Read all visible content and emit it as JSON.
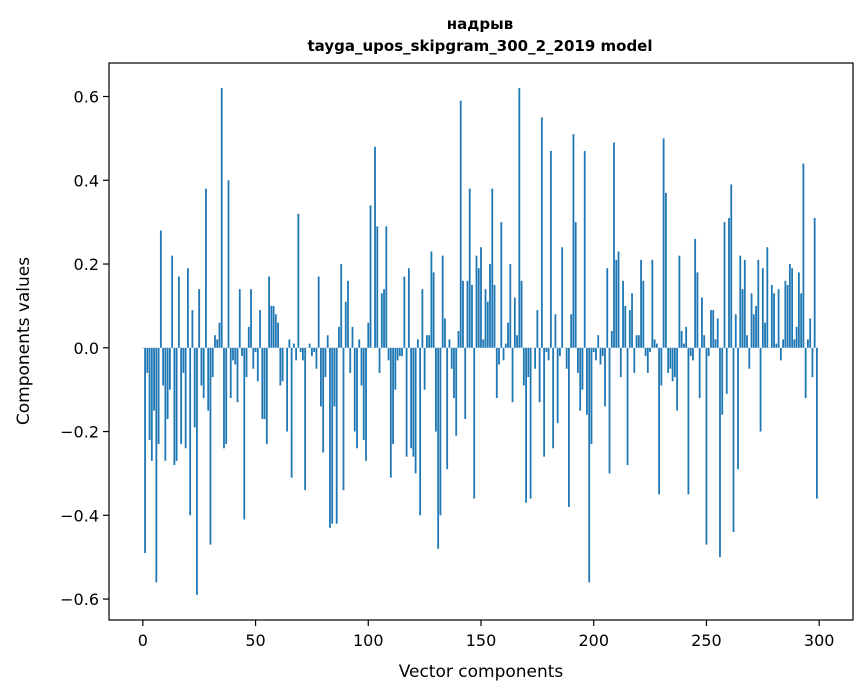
{
  "chart_data": {
    "type": "bar",
    "title": "надрыв",
    "subtitle": "tayga_upos_skipgram_300_2_2019 model",
    "xlabel": "Vector components",
    "ylabel": "Components values",
    "xlim": [
      -15,
      315
    ],
    "ylim": [
      -0.65,
      0.68
    ],
    "xticks": [
      0,
      50,
      100,
      150,
      200,
      250,
      300
    ],
    "yticks": [
      -0.6,
      -0.4,
      -0.2,
      0.0,
      0.2,
      0.4,
      0.6
    ],
    "ytick_labels": [
      "−0.6",
      "−0.4",
      "−0.2",
      "0.0",
      "0.2",
      "0.4",
      "0.6"
    ],
    "bar_color": "#1f77b4",
    "values": [
      0.0,
      -0.49,
      -0.06,
      -0.22,
      -0.27,
      -0.15,
      -0.56,
      -0.23,
      0.28,
      -0.09,
      -0.27,
      -0.17,
      -0.1,
      0.22,
      -0.28,
      -0.27,
      0.17,
      -0.23,
      -0.06,
      -0.24,
      0.19,
      -0.4,
      0.09,
      -0.19,
      -0.59,
      0.14,
      -0.09,
      -0.12,
      0.38,
      -0.15,
      -0.47,
      -0.07,
      0.03,
      0.02,
      0.06,
      0.62,
      -0.24,
      -0.23,
      0.4,
      -0.12,
      -0.03,
      -0.04,
      -0.13,
      0.14,
      -0.02,
      -0.41,
      -0.07,
      0.05,
      0.14,
      -0.05,
      -0.01,
      -0.08,
      0.09,
      -0.17,
      -0.17,
      -0.23,
      0.17,
      0.1,
      0.1,
      0.08,
      0.06,
      -0.09,
      -0.08,
      0.0,
      -0.2,
      0.02,
      -0.31,
      0.01,
      -0.03,
      0.32,
      -0.01,
      -0.03,
      -0.34,
      0.0,
      0.01,
      -0.02,
      -0.01,
      -0.05,
      0.17,
      -0.14,
      -0.25,
      -0.07,
      0.03,
      -0.43,
      -0.42,
      -0.14,
      -0.42,
      0.05,
      0.2,
      -0.34,
      0.11,
      0.16,
      -0.06,
      0.05,
      -0.2,
      -0.24,
      0.02,
      -0.09,
      -0.22,
      -0.27,
      0.06,
      0.34,
      0.0,
      0.48,
      0.29,
      -0.06,
      0.13,
      0.14,
      0.29,
      -0.03,
      -0.31,
      -0.23,
      -0.1,
      -0.03,
      -0.02,
      -0.02,
      0.17,
      -0.26,
      0.19,
      -0.24,
      -0.26,
      -0.3,
      0.02,
      -0.4,
      0.14,
      -0.1,
      0.03,
      0.03,
      0.23,
      0.18,
      -0.2,
      -0.48,
      -0.4,
      0.22,
      0.07,
      -0.29,
      0.02,
      -0.05,
      -0.12,
      -0.21,
      0.04,
      0.59,
      0.16,
      -0.17,
      0.16,
      0.38,
      0.15,
      -0.36,
      0.22,
      0.19,
      0.24,
      0.02,
      0.14,
      0.11,
      0.2,
      0.38,
      0.15,
      -0.12,
      -0.04,
      0.3,
      -0.03,
      0.01,
      0.06,
      0.2,
      -0.13,
      0.12,
      0.03,
      0.62,
      0.16,
      -0.09,
      -0.37,
      -0.07,
      -0.36,
      0.0,
      -0.05,
      0.09,
      -0.13,
      0.55,
      -0.26,
      -0.01,
      -0.03,
      0.47,
      -0.24,
      0.08,
      -0.18,
      -0.02,
      0.24,
      0.0,
      -0.05,
      -0.38,
      0.08,
      0.51,
      0.3,
      -0.06,
      -0.15,
      -0.1,
      0.47,
      -0.16,
      -0.56,
      -0.23,
      -0.01,
      -0.03,
      0.03,
      -0.04,
      -0.02,
      -0.14,
      0.19,
      -0.3,
      0.04,
      0.49,
      0.21,
      0.23,
      -0.07,
      0.16,
      0.1,
      -0.28,
      0.09,
      0.13,
      -0.06,
      0.03,
      0.03,
      0.21,
      0.16,
      -0.02,
      -0.06,
      -0.01,
      0.21,
      0.02,
      0.01,
      -0.35,
      -0.09,
      0.5,
      0.37,
      -0.06,
      -0.05,
      -0.08,
      -0.07,
      -0.15,
      0.22,
      0.04,
      0.01,
      0.05,
      -0.35,
      -0.02,
      -0.03,
      0.26,
      0.18,
      -0.12,
      0.12,
      0.03,
      -0.47,
      -0.02,
      0.09,
      0.09,
      0.02,
      0.07,
      -0.5,
      -0.16,
      0.3,
      -0.11,
      0.31,
      0.39,
      -0.44,
      0.08,
      -0.29,
      0.22,
      0.14,
      0.21,
      0.03,
      -0.05,
      0.13,
      0.08,
      0.1,
      0.21,
      -0.2,
      0.19,
      0.06,
      0.24,
      0.0,
      0.15,
      0.13,
      0.01,
      0.14,
      -0.03,
      0.02,
      0.16,
      0.15,
      0.2,
      0.19,
      0.02,
      0.05,
      0.18,
      0.13,
      0.44,
      -0.12,
      0.02,
      0.07,
      -0.07,
      0.31,
      -0.36
    ]
  }
}
